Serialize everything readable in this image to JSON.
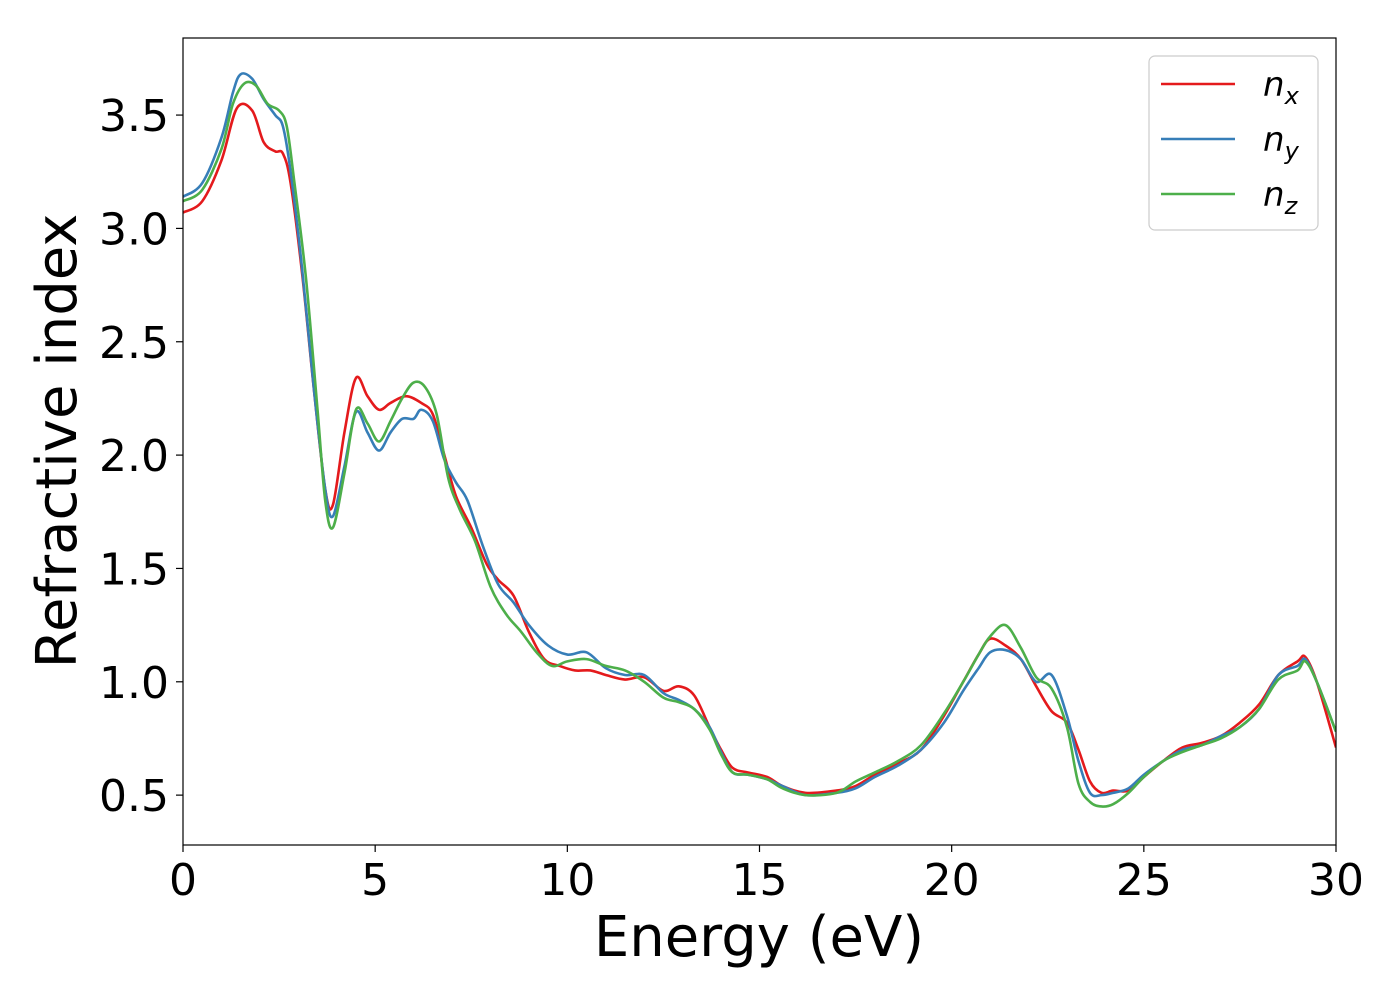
{
  "chart_data": {
    "type": "line",
    "xlabel": "Energy (eV)",
    "ylabel": "Refractive index",
    "xlim": [
      0,
      30
    ],
    "ylim": [
      0.28,
      3.84
    ],
    "xticks": [
      0,
      5,
      10,
      15,
      20,
      25,
      30
    ],
    "yticks": [
      0.5,
      1.0,
      1.5,
      2.0,
      2.5,
      3.0,
      3.5
    ],
    "xtick_labels": [
      "0",
      "5",
      "10",
      "15",
      "20",
      "25",
      "30"
    ],
    "ytick_labels": [
      "0.5",
      "1.0",
      "1.5",
      "2.0",
      "2.5",
      "3.0",
      "3.5"
    ],
    "grid": false,
    "legend_position": "top-right",
    "series": [
      {
        "name": "n_x",
        "label_base": "n",
        "label_sub": "x",
        "color": "#e41a1c",
        "points": [
          [
            0,
            3.07
          ],
          [
            0.5,
            3.12
          ],
          [
            1.0,
            3.3
          ],
          [
            1.4,
            3.53
          ],
          [
            1.8,
            3.52
          ],
          [
            2.1,
            3.38
          ],
          [
            2.4,
            3.34
          ],
          [
            2.6,
            3.33
          ],
          [
            2.8,
            3.2
          ],
          [
            3.1,
            2.8
          ],
          [
            3.4,
            2.3
          ],
          [
            3.7,
            1.85
          ],
          [
            3.9,
            1.78
          ],
          [
            4.2,
            2.1
          ],
          [
            4.5,
            2.34
          ],
          [
            4.8,
            2.26
          ],
          [
            5.1,
            2.2
          ],
          [
            5.4,
            2.23
          ],
          [
            5.8,
            2.26
          ],
          [
            6.2,
            2.23
          ],
          [
            6.5,
            2.18
          ],
          [
            6.8,
            2.0
          ],
          [
            7.1,
            1.82
          ],
          [
            7.5,
            1.68
          ],
          [
            7.9,
            1.52
          ],
          [
            8.2,
            1.45
          ],
          [
            8.6,
            1.38
          ],
          [
            9.0,
            1.22
          ],
          [
            9.4,
            1.1
          ],
          [
            9.8,
            1.07
          ],
          [
            10.2,
            1.05
          ],
          [
            10.6,
            1.05
          ],
          [
            11.0,
            1.03
          ],
          [
            11.5,
            1.01
          ],
          [
            12.0,
            1.02
          ],
          [
            12.5,
            0.96
          ],
          [
            12.9,
            0.98
          ],
          [
            13.3,
            0.94
          ],
          [
            13.7,
            0.8
          ],
          [
            14.0,
            0.7
          ],
          [
            14.3,
            0.62
          ],
          [
            14.7,
            0.6
          ],
          [
            15.2,
            0.58
          ],
          [
            15.6,
            0.54
          ],
          [
            16.2,
            0.51
          ],
          [
            17.0,
            0.52
          ],
          [
            17.5,
            0.54
          ],
          [
            18.0,
            0.59
          ],
          [
            18.6,
            0.64
          ],
          [
            19.2,
            0.7
          ],
          [
            19.8,
            0.85
          ],
          [
            20.3,
            1.0
          ],
          [
            20.7,
            1.12
          ],
          [
            21.0,
            1.19
          ],
          [
            21.4,
            1.16
          ],
          [
            21.8,
            1.1
          ],
          [
            22.2,
            0.98
          ],
          [
            22.6,
            0.87
          ],
          [
            23.0,
            0.82
          ],
          [
            23.3,
            0.7
          ],
          [
            23.6,
            0.56
          ],
          [
            23.9,
            0.51
          ],
          [
            24.2,
            0.52
          ],
          [
            24.6,
            0.52
          ],
          [
            25.0,
            0.58
          ],
          [
            25.5,
            0.65
          ],
          [
            26.0,
            0.71
          ],
          [
            26.5,
            0.73
          ],
          [
            27.0,
            0.76
          ],
          [
            27.5,
            0.82
          ],
          [
            28.0,
            0.9
          ],
          [
            28.5,
            1.03
          ],
          [
            29.0,
            1.09
          ],
          [
            29.2,
            1.11
          ],
          [
            29.5,
            1.0
          ],
          [
            30.0,
            0.71
          ]
        ]
      },
      {
        "name": "n_y",
        "label_base": "n",
        "label_sub": "y",
        "color": "#377eb8",
        "points": [
          [
            0,
            3.14
          ],
          [
            0.5,
            3.2
          ],
          [
            1.0,
            3.4
          ],
          [
            1.3,
            3.6
          ],
          [
            1.5,
            3.68
          ],
          [
            1.8,
            3.66
          ],
          [
            2.1,
            3.57
          ],
          [
            2.4,
            3.5
          ],
          [
            2.6,
            3.45
          ],
          [
            2.8,
            3.25
          ],
          [
            3.1,
            2.82
          ],
          [
            3.4,
            2.3
          ],
          [
            3.7,
            1.85
          ],
          [
            3.9,
            1.73
          ],
          [
            4.2,
            1.95
          ],
          [
            4.5,
            2.19
          ],
          [
            4.8,
            2.1
          ],
          [
            5.1,
            2.02
          ],
          [
            5.4,
            2.1
          ],
          [
            5.7,
            2.16
          ],
          [
            6.0,
            2.16
          ],
          [
            6.2,
            2.2
          ],
          [
            6.5,
            2.15
          ],
          [
            6.8,
            1.98
          ],
          [
            7.1,
            1.88
          ],
          [
            7.4,
            1.8
          ],
          [
            7.8,
            1.6
          ],
          [
            8.2,
            1.43
          ],
          [
            8.6,
            1.35
          ],
          [
            9.0,
            1.25
          ],
          [
            9.5,
            1.16
          ],
          [
            10.0,
            1.12
          ],
          [
            10.5,
            1.13
          ],
          [
            11.0,
            1.06
          ],
          [
            11.5,
            1.03
          ],
          [
            12.0,
            1.03
          ],
          [
            12.5,
            0.95
          ],
          [
            12.9,
            0.92
          ],
          [
            13.3,
            0.88
          ],
          [
            13.7,
            0.8
          ],
          [
            14.0,
            0.69
          ],
          [
            14.3,
            0.6
          ],
          [
            14.7,
            0.59
          ],
          [
            15.2,
            0.57
          ],
          [
            15.6,
            0.54
          ],
          [
            16.2,
            0.5
          ],
          [
            17.0,
            0.51
          ],
          [
            17.5,
            0.53
          ],
          [
            18.0,
            0.58
          ],
          [
            18.6,
            0.63
          ],
          [
            19.2,
            0.7
          ],
          [
            19.8,
            0.82
          ],
          [
            20.3,
            0.96
          ],
          [
            20.7,
            1.06
          ],
          [
            21.0,
            1.13
          ],
          [
            21.4,
            1.14
          ],
          [
            21.8,
            1.1
          ],
          [
            22.2,
            1.0
          ],
          [
            22.6,
            1.03
          ],
          [
            23.0,
            0.85
          ],
          [
            23.3,
            0.65
          ],
          [
            23.6,
            0.51
          ],
          [
            23.9,
            0.5
          ],
          [
            24.2,
            0.51
          ],
          [
            24.6,
            0.53
          ],
          [
            25.0,
            0.59
          ],
          [
            25.5,
            0.65
          ],
          [
            26.0,
            0.7
          ],
          [
            26.5,
            0.72
          ],
          [
            27.0,
            0.76
          ],
          [
            27.5,
            0.8
          ],
          [
            28.0,
            0.88
          ],
          [
            28.5,
            1.03
          ],
          [
            29.0,
            1.07
          ],
          [
            29.2,
            1.1
          ],
          [
            29.5,
            1.0
          ],
          [
            30.0,
            0.78
          ]
        ]
      },
      {
        "name": "n_z",
        "label_base": "n",
        "label_sub": "z",
        "color": "#4daf4a",
        "points": [
          [
            0,
            3.12
          ],
          [
            0.5,
            3.17
          ],
          [
            1.0,
            3.35
          ],
          [
            1.3,
            3.55
          ],
          [
            1.6,
            3.64
          ],
          [
            1.9,
            3.63
          ],
          [
            2.2,
            3.55
          ],
          [
            2.5,
            3.52
          ],
          [
            2.7,
            3.45
          ],
          [
            2.9,
            3.2
          ],
          [
            3.2,
            2.78
          ],
          [
            3.5,
            2.2
          ],
          [
            3.7,
            1.8
          ],
          [
            3.9,
            1.68
          ],
          [
            4.2,
            1.92
          ],
          [
            4.5,
            2.2
          ],
          [
            4.8,
            2.14
          ],
          [
            5.1,
            2.06
          ],
          [
            5.4,
            2.15
          ],
          [
            5.7,
            2.25
          ],
          [
            6.0,
            2.32
          ],
          [
            6.3,
            2.3
          ],
          [
            6.6,
            2.18
          ],
          [
            6.9,
            1.9
          ],
          [
            7.2,
            1.76
          ],
          [
            7.6,
            1.62
          ],
          [
            8.0,
            1.42
          ],
          [
            8.4,
            1.3
          ],
          [
            8.8,
            1.22
          ],
          [
            9.2,
            1.13
          ],
          [
            9.6,
            1.07
          ],
          [
            10.0,
            1.09
          ],
          [
            10.5,
            1.1
          ],
          [
            11.0,
            1.07
          ],
          [
            11.5,
            1.05
          ],
          [
            12.0,
            1.0
          ],
          [
            12.5,
            0.93
          ],
          [
            12.9,
            0.91
          ],
          [
            13.3,
            0.88
          ],
          [
            13.7,
            0.79
          ],
          [
            14.0,
            0.68
          ],
          [
            14.3,
            0.6
          ],
          [
            14.7,
            0.59
          ],
          [
            15.2,
            0.57
          ],
          [
            15.6,
            0.53
          ],
          [
            16.2,
            0.5
          ],
          [
            17.0,
            0.51
          ],
          [
            17.5,
            0.56
          ],
          [
            18.0,
            0.6
          ],
          [
            18.6,
            0.65
          ],
          [
            19.2,
            0.72
          ],
          [
            19.8,
            0.86
          ],
          [
            20.3,
            1.0
          ],
          [
            20.7,
            1.12
          ],
          [
            21.0,
            1.2
          ],
          [
            21.4,
            1.25
          ],
          [
            21.8,
            1.15
          ],
          [
            22.2,
            1.02
          ],
          [
            22.6,
            0.97
          ],
          [
            23.0,
            0.8
          ],
          [
            23.3,
            0.55
          ],
          [
            23.6,
            0.47
          ],
          [
            23.9,
            0.45
          ],
          [
            24.2,
            0.46
          ],
          [
            24.6,
            0.51
          ],
          [
            25.0,
            0.58
          ],
          [
            25.5,
            0.65
          ],
          [
            26.0,
            0.69
          ],
          [
            26.5,
            0.72
          ],
          [
            27.0,
            0.75
          ],
          [
            27.5,
            0.8
          ],
          [
            28.0,
            0.88
          ],
          [
            28.5,
            1.01
          ],
          [
            29.0,
            1.05
          ],
          [
            29.2,
            1.09
          ],
          [
            29.5,
            1.0
          ],
          [
            30.0,
            0.78
          ]
        ]
      }
    ]
  }
}
